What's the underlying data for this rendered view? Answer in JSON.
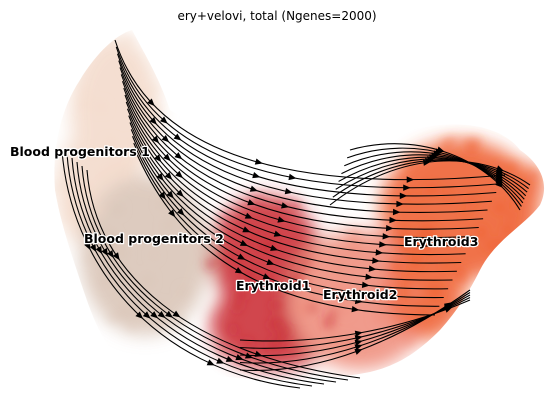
{
  "chart_data": {
    "type": "scatter",
    "title": "ery+velovi, total (Ngenes=2000)",
    "xlabel": "",
    "ylabel": "",
    "axes_visible": false,
    "grid": false,
    "legend": "on data",
    "overlay": "velocity streamlines with arrowheads (black), flowing left to right",
    "clusters": [
      {
        "name": "Blood progenitors 1",
        "color": "#f3d9c9"
      },
      {
        "name": "Blood progenitors 2",
        "color": "#d8c2b4"
      },
      {
        "name": "Erythroid1",
        "color": "#c9252f"
      },
      {
        "name": "Erythroid2",
        "color": "#ee8a78"
      },
      {
        "name": "Erythroid3",
        "color": "#ee5a2a"
      }
    ]
  }
}
